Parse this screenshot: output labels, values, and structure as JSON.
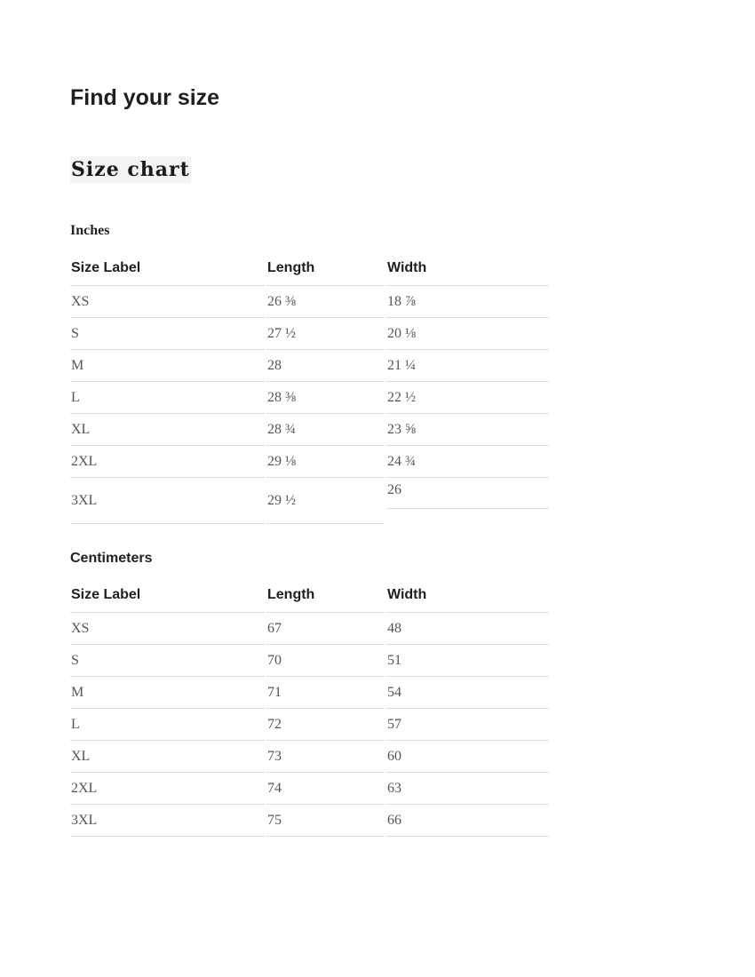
{
  "page": {
    "title": "Find your size",
    "chart_heading": "Size chart"
  },
  "inches": {
    "heading": "Inches",
    "headers": [
      "Size Label",
      "Length",
      "Width"
    ],
    "rows": [
      [
        "XS",
        "26 ⅜",
        "18 ⅞"
      ],
      [
        "S",
        "27 ½",
        "20 ⅛"
      ],
      [
        "M",
        "28",
        "21 ¼"
      ],
      [
        "L",
        "28 ⅜",
        "22 ½"
      ],
      [
        "XL",
        "28 ¾",
        "23 ⅝"
      ],
      [
        "2XL",
        "29 ⅛",
        "24 ¾"
      ],
      [
        "3XL",
        "29 ½",
        "26"
      ]
    ]
  },
  "centimeters": {
    "heading": "Centimeters",
    "headers": [
      "Size Label",
      "Length",
      "Width"
    ],
    "rows": [
      [
        "XS",
        "67",
        "48"
      ],
      [
        "S",
        "70",
        "51"
      ],
      [
        "M",
        "71",
        "54"
      ],
      [
        "L",
        "72",
        "57"
      ],
      [
        "XL",
        "73",
        "60"
      ],
      [
        "2XL",
        "74",
        "63"
      ],
      [
        "3XL",
        "75",
        "66"
      ]
    ]
  }
}
